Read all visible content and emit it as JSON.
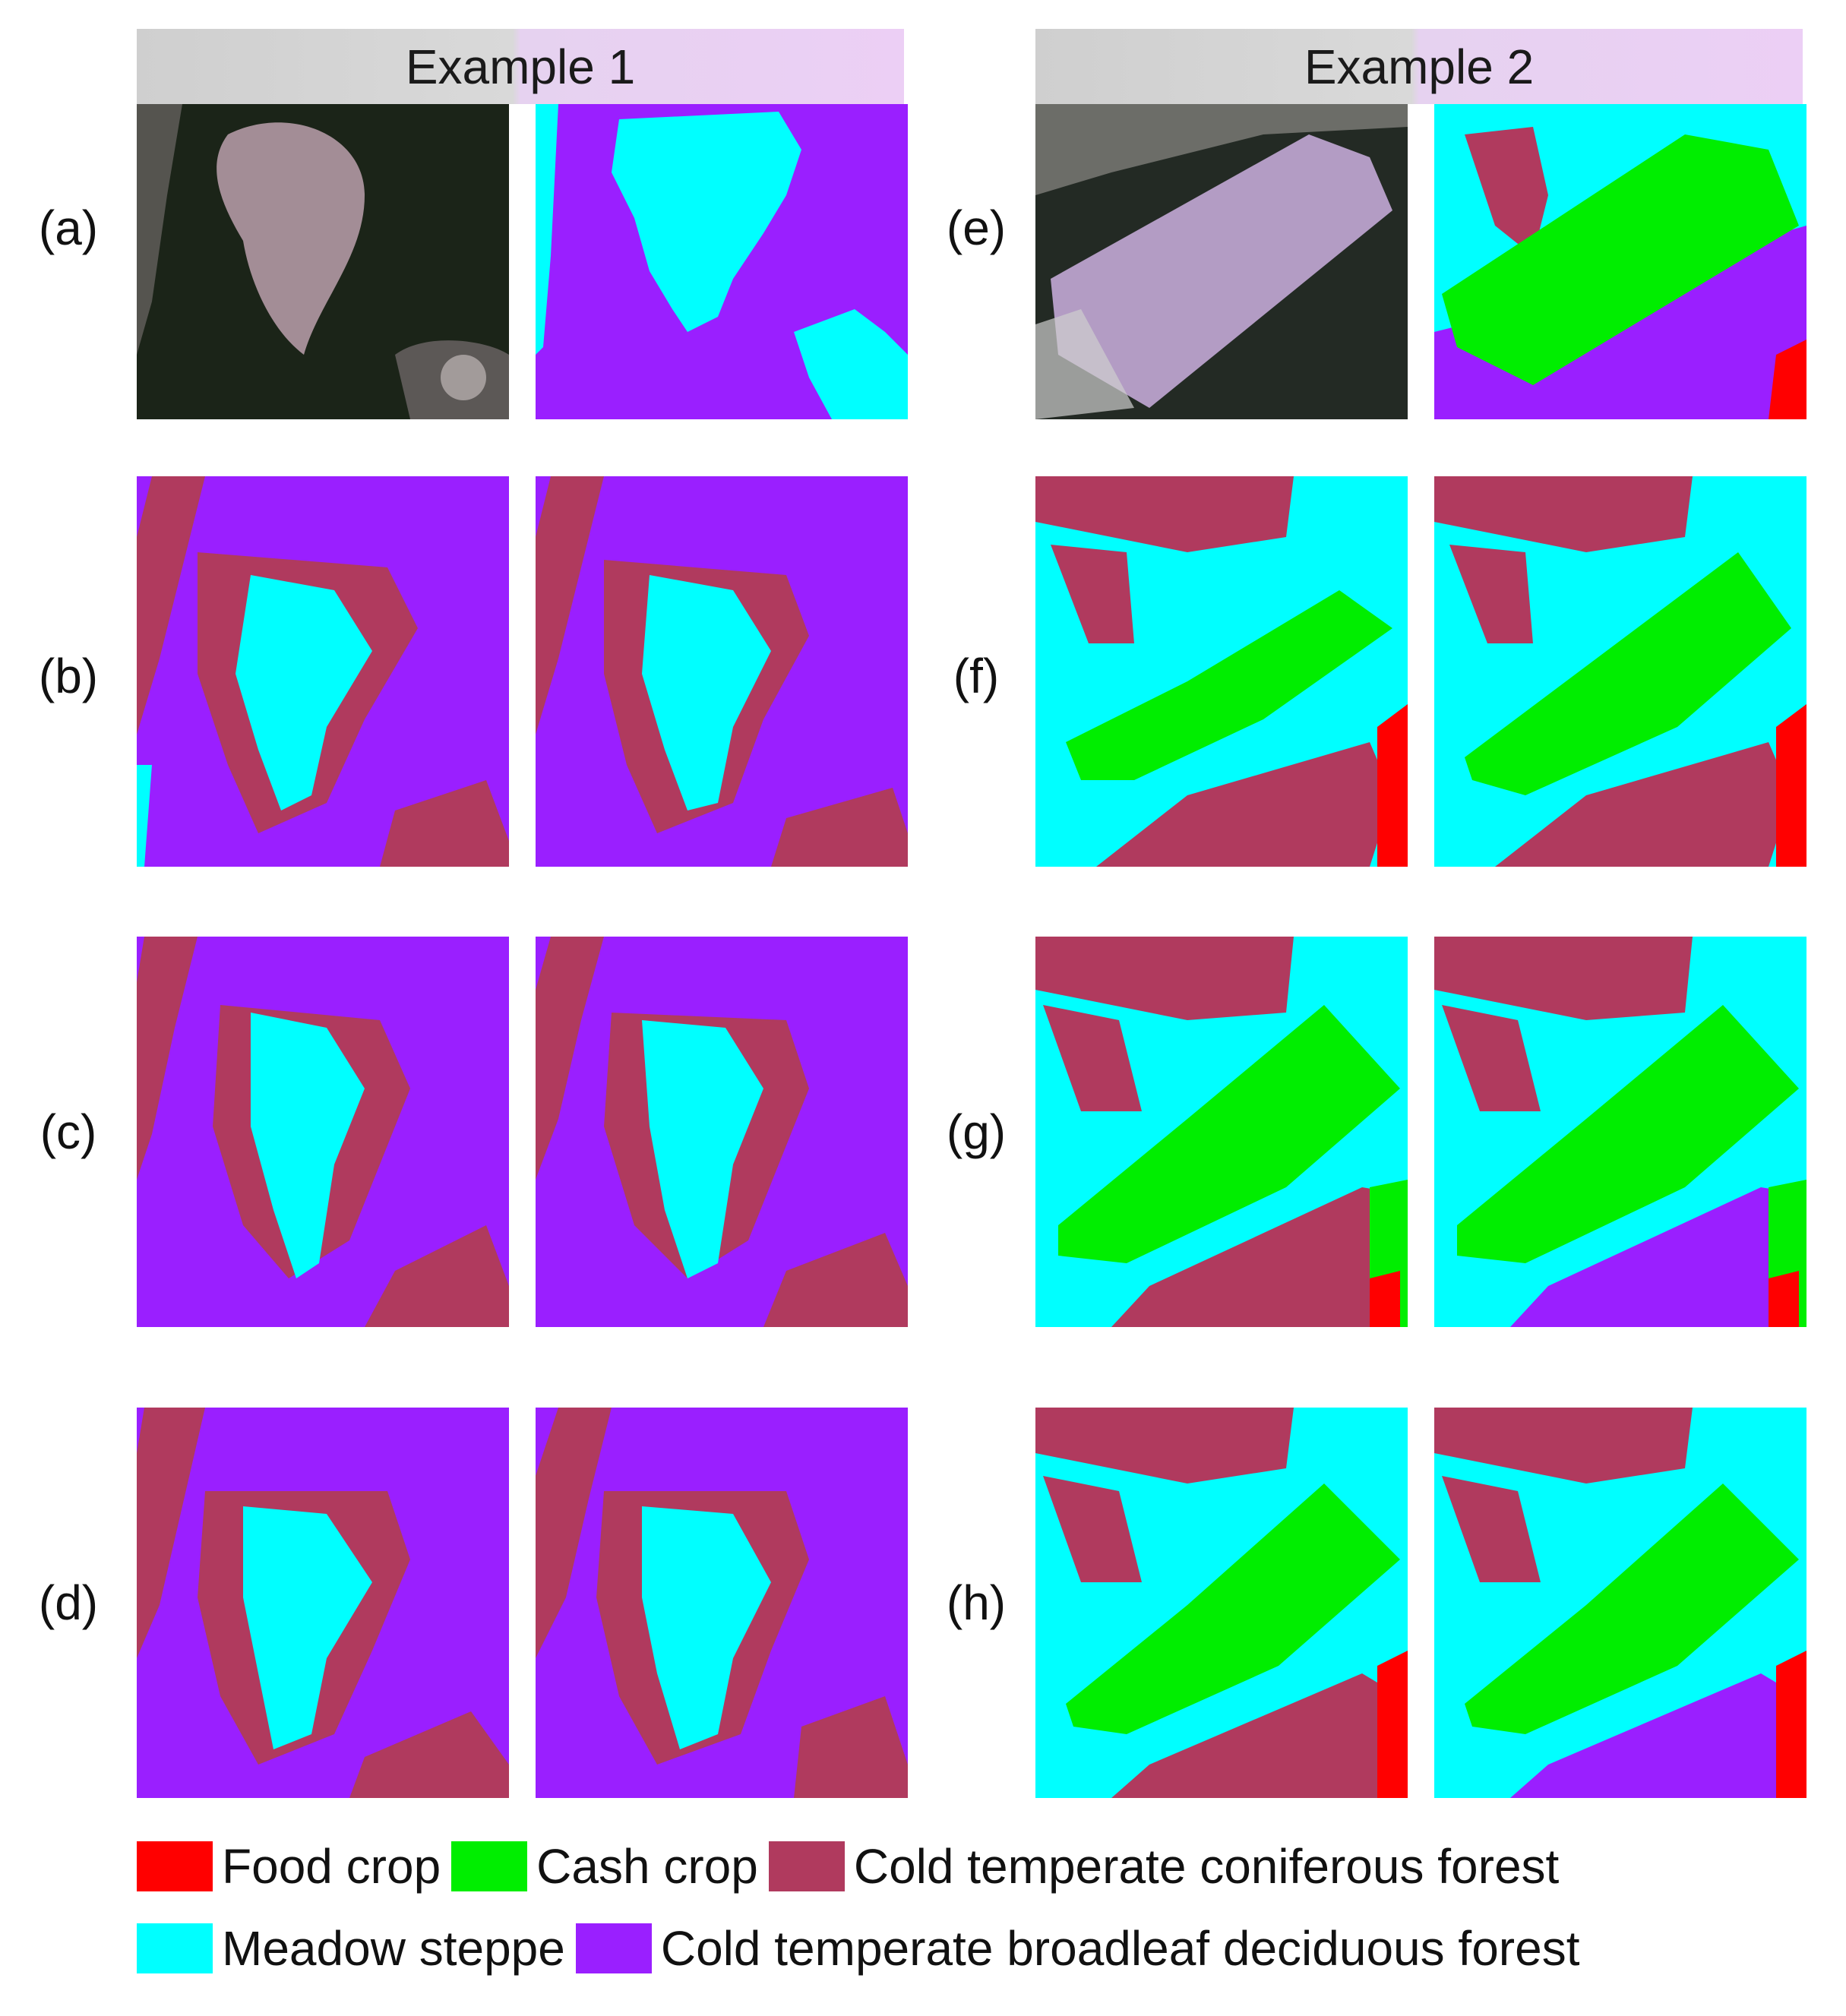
{
  "headers": [
    "Example 1",
    "Example 2"
  ],
  "row_labels_left": [
    "(a)",
    "(b)",
    "(c)",
    "(d)"
  ],
  "row_labels_right": [
    "(e)",
    "(f)",
    "(g)",
    "(h)"
  ],
  "legend": {
    "food_crop": "Food crop",
    "cash_crop": "Cash crop",
    "coniferous": "Cold temperate coniferous forest",
    "meadow": "Meadow steppe",
    "broadleaf": "Cold temperate broadleaf deciduous forest"
  },
  "colors": {
    "food_crop": "#ff0000",
    "cash_crop": "#00ee00",
    "coniferous": "#b03a5e",
    "meadow": "#00ffff",
    "broadleaf": "#9a1fff"
  },
  "icons": [
    "legend-swatch-food-crop",
    "legend-swatch-cash-crop",
    "legend-swatch-coniferous",
    "legend-swatch-meadow",
    "legend-swatch-broadleaf"
  ]
}
